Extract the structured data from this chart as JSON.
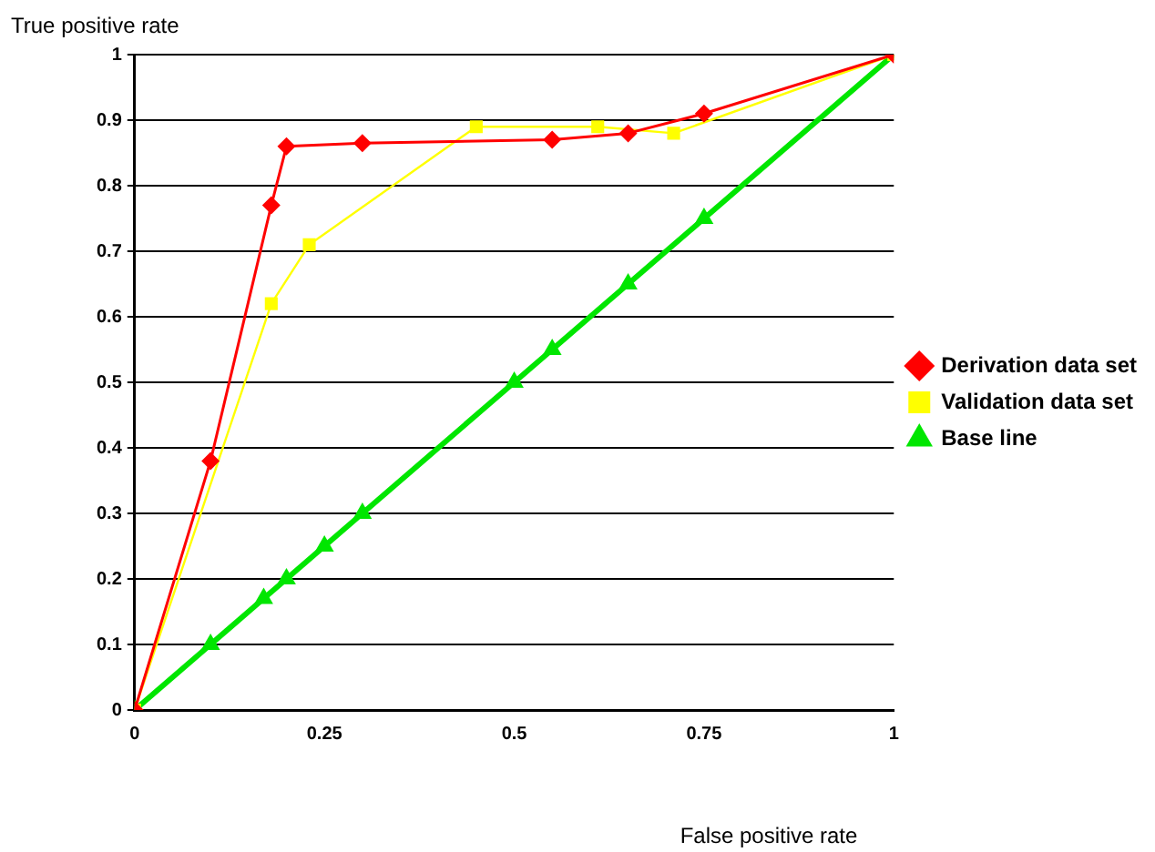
{
  "chart_data": {
    "type": "line",
    "xlabel": "False positive rate",
    "ylabel": "True positive rate",
    "xlim": [
      0,
      1
    ],
    "xticks": [
      0,
      0.25,
      0.5,
      0.75,
      1
    ],
    "ylim": [
      0,
      1
    ],
    "yticks": [
      0,
      0.1,
      0.2,
      0.3,
      0.4,
      0.5,
      0.6,
      0.7,
      0.8,
      0.9,
      1
    ],
    "grid": "y",
    "legend": "right",
    "series": [
      {
        "name": "Derivation data set",
        "color": "#ff0000",
        "marker": "diamond",
        "x": [
          0,
          0.1,
          0.18,
          0.2,
          0.3,
          0.55,
          0.65,
          0.75,
          1
        ],
        "values": [
          0,
          0.38,
          0.77,
          0.86,
          0.865,
          0.87,
          0.88,
          0.91,
          1
        ]
      },
      {
        "name": "Validation data set",
        "color": "#ffff00",
        "marker": "square",
        "x": [
          0,
          0.18,
          0.23,
          0.45,
          0.61,
          0.71,
          1
        ],
        "values": [
          0,
          0.62,
          0.71,
          0.89,
          0.89,
          0.88,
          1
        ]
      },
      {
        "name": "Base line",
        "color": "#00e600",
        "marker": "triangle",
        "x": [
          0,
          0.1,
          0.17,
          0.2,
          0.25,
          0.3,
          0.5,
          0.55,
          0.65,
          0.75,
          1
        ],
        "values": [
          0,
          0.1,
          0.17,
          0.2,
          0.25,
          0.3,
          0.5,
          0.55,
          0.65,
          0.75,
          1
        ]
      }
    ]
  }
}
